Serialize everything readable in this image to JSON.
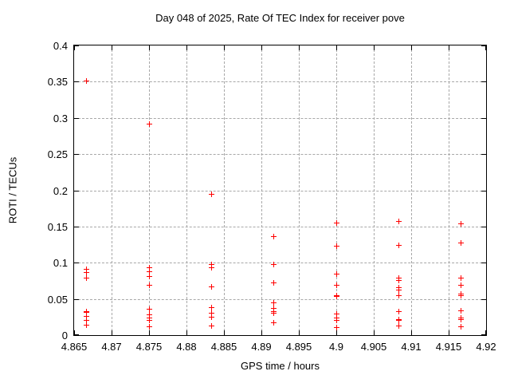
{
  "title": "Day 048 of 2025, Rate Of TEC Index for receiver pove",
  "colors": {
    "marker": "#ff0000",
    "grid": "#a8a8a8",
    "axis": "#000000",
    "background": "#ffffff"
  },
  "chart_data": {
    "type": "scatter",
    "title": "Day 048 of 2025, Rate Of TEC Index for receiver pove",
    "xlabel": "GPS time / hours",
    "ylabel": "ROTI / TECUs",
    "xlim": [
      4.865,
      4.92
    ],
    "ylim": [
      0,
      0.4
    ],
    "grid": true,
    "legend": "none",
    "marker": "plus",
    "xtick_values": [
      4.865,
      4.87,
      4.875,
      4.88,
      4.885,
      4.89,
      4.895,
      4.9,
      4.905,
      4.91,
      4.915,
      4.92
    ],
    "xtick_labels": [
      "4.865",
      "4.87",
      "4.875",
      "4.88",
      "4.885",
      "4.89",
      "4.895",
      "4.9",
      "4.905",
      "4.91",
      "4.915",
      "4.92"
    ],
    "ytick_values": [
      0,
      0.05,
      0.1,
      0.15,
      0.2,
      0.25,
      0.3,
      0.35,
      0.4
    ],
    "ytick_labels": [
      "0",
      "0.05",
      "0.1",
      "0.15",
      "0.2",
      "0.25",
      "0.3",
      "0.35",
      "0.4"
    ],
    "series": [
      {
        "name": "roti",
        "points": [
          [
            4.8667,
            0.351
          ],
          [
            4.8667,
            0.091
          ],
          [
            4.8667,
            0.086
          ],
          [
            4.8667,
            0.079
          ],
          [
            4.8667,
            0.033
          ],
          [
            4.8667,
            0.031
          ],
          [
            4.8667,
            0.026
          ],
          [
            4.8667,
            0.02
          ],
          [
            4.8667,
            0.014
          ],
          [
            4.875,
            0.292
          ],
          [
            4.875,
            0.093
          ],
          [
            4.875,
            0.088
          ],
          [
            4.875,
            0.081
          ],
          [
            4.875,
            0.069
          ],
          [
            4.875,
            0.036
          ],
          [
            4.875,
            0.028
          ],
          [
            4.875,
            0.024
          ],
          [
            4.875,
            0.02
          ],
          [
            4.875,
            0.012
          ],
          [
            4.8833,
            0.195
          ],
          [
            4.8833,
            0.098
          ],
          [
            4.8833,
            0.093
          ],
          [
            4.8833,
            0.067
          ],
          [
            4.8833,
            0.038
          ],
          [
            4.8833,
            0.03
          ],
          [
            4.8833,
            0.025
          ],
          [
            4.8833,
            0.013
          ],
          [
            4.8917,
            0.136
          ],
          [
            4.8917,
            0.098
          ],
          [
            4.8917,
            0.072
          ],
          [
            4.8917,
            0.045
          ],
          [
            4.8917,
            0.037
          ],
          [
            4.8917,
            0.033
          ],
          [
            4.8917,
            0.03
          ],
          [
            4.8917,
            0.017
          ],
          [
            4.9,
            0.155
          ],
          [
            4.9,
            0.123
          ],
          [
            4.9,
            0.084
          ],
          [
            4.9,
            0.069
          ],
          [
            4.9,
            0.055
          ],
          [
            4.9,
            0.053
          ],
          [
            4.9,
            0.029
          ],
          [
            4.9,
            0.024
          ],
          [
            4.9,
            0.02
          ],
          [
            4.9,
            0.011
          ],
          [
            4.9083,
            0.157
          ],
          [
            4.9083,
            0.124
          ],
          [
            4.9083,
            0.079
          ],
          [
            4.9083,
            0.075
          ],
          [
            4.9083,
            0.066
          ],
          [
            4.9083,
            0.062
          ],
          [
            4.9083,
            0.055
          ],
          [
            4.9083,
            0.033
          ],
          [
            4.9083,
            0.022
          ],
          [
            4.9083,
            0.02
          ],
          [
            4.9083,
            0.013
          ],
          [
            4.9167,
            0.154
          ],
          [
            4.9167,
            0.127
          ],
          [
            4.9167,
            0.079
          ],
          [
            4.9167,
            0.069
          ],
          [
            4.9167,
            0.057
          ],
          [
            4.9167,
            0.054
          ],
          [
            4.9167,
            0.034
          ],
          [
            4.9167,
            0.024
          ],
          [
            4.9167,
            0.022
          ],
          [
            4.9167,
            0.012
          ]
        ]
      }
    ]
  }
}
